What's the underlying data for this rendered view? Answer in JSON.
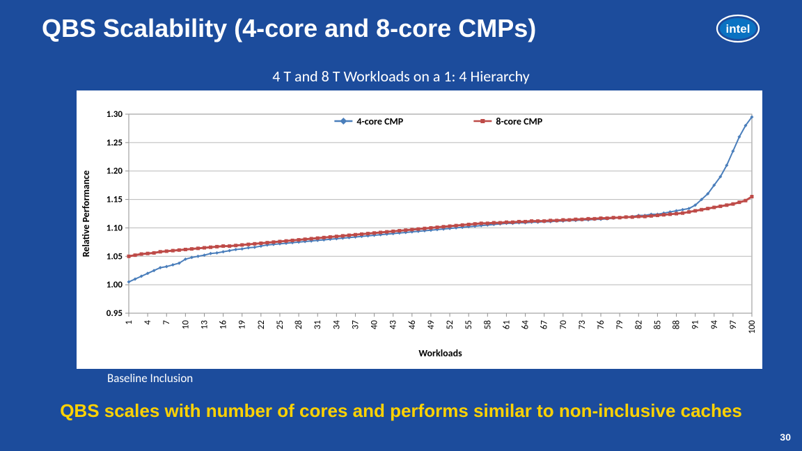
{
  "slide": {
    "background_color": "#1c4c9c",
    "title": "QBS Scalability (4-core and 8-core CMPs)",
    "title_color": "#ffffff",
    "title_fontsize": 36,
    "subtitle": "4 T and 8 T Workloads on a 1: 4 Hierarchy",
    "subtitle_color": "#ffffff",
    "baseline_note": "Baseline Inclusion",
    "conclusion": "QBS scales with number of cores and performs similar to non-inclusive caches",
    "conclusion_color": "#ffd200",
    "page_number": "30"
  },
  "logo": {
    "text": "intel",
    "fill": "#0a72c2",
    "ring": "#ffffff",
    "text_color": "#ffffff"
  },
  "chart": {
    "type": "line",
    "background_color": "#ffffff",
    "plot_border_color": "#8f8f8f",
    "grid_color": "#b8b8b8",
    "ylabel": "Relative Performance",
    "ylabel_fontsize": 14,
    "ylabel_fontweight": "bold",
    "xlabel": "Workloads",
    "xlabel_fontsize": 14,
    "xlabel_fontweight": "bold",
    "ylim": [
      0.95,
      1.3
    ],
    "yticks": [
      0.95,
      1.0,
      1.05,
      1.1,
      1.15,
      1.2,
      1.25,
      1.3
    ],
    "ytick_labels": [
      "0.95",
      "1.00",
      "1.05",
      "1.10",
      "1.15",
      "1.20",
      "1.25",
      "1.30"
    ],
    "xlim": [
      1,
      100
    ],
    "xticks": [
      1,
      4,
      7,
      10,
      13,
      16,
      19,
      22,
      25,
      28,
      31,
      34,
      37,
      40,
      43,
      46,
      49,
      52,
      55,
      58,
      61,
      64,
      67,
      70,
      73,
      76,
      79,
      82,
      85,
      88,
      91,
      94,
      97,
      100
    ],
    "xtick_rotated": true,
    "tick_font": "Calibri, Arial, sans-serif",
    "tick_fontsize": 13,
    "legend": {
      "position": "top",
      "font": "Calibri, Arial, sans-serif",
      "fontsize": 14,
      "fontweight": "bold",
      "items": [
        {
          "label": "4-core CMP",
          "color": "#4a7ebb",
          "marker": "diamond"
        },
        {
          "label": "8-core CMP",
          "color": "#be4b48",
          "marker": "square"
        }
      ]
    },
    "series": [
      {
        "name": "4-core CMP",
        "color": "#4a7ebb",
        "line_width": 2,
        "marker": "diamond",
        "marker_size": 5,
        "x": [
          1,
          2,
          3,
          4,
          5,
          6,
          7,
          8,
          9,
          10,
          11,
          12,
          13,
          14,
          15,
          16,
          17,
          18,
          19,
          20,
          21,
          22,
          23,
          24,
          25,
          26,
          27,
          28,
          29,
          30,
          31,
          32,
          33,
          34,
          35,
          36,
          37,
          38,
          39,
          40,
          41,
          42,
          43,
          44,
          45,
          46,
          47,
          48,
          49,
          50,
          51,
          52,
          53,
          54,
          55,
          56,
          57,
          58,
          59,
          60,
          61,
          62,
          63,
          64,
          65,
          66,
          67,
          68,
          69,
          70,
          71,
          72,
          73,
          74,
          75,
          76,
          77,
          78,
          79,
          80,
          81,
          82,
          83,
          84,
          85,
          86,
          87,
          88,
          89,
          90,
          91,
          92,
          93,
          94,
          95,
          96,
          97,
          98,
          99,
          100
        ],
        "y": [
          1.005,
          1.01,
          1.015,
          1.02,
          1.025,
          1.03,
          1.032,
          1.035,
          1.038,
          1.045,
          1.048,
          1.05,
          1.052,
          1.055,
          1.056,
          1.058,
          1.06,
          1.062,
          1.063,
          1.065,
          1.066,
          1.068,
          1.07,
          1.071,
          1.072,
          1.073,
          1.074,
          1.075,
          1.076,
          1.077,
          1.078,
          1.079,
          1.08,
          1.081,
          1.082,
          1.083,
          1.084,
          1.085,
          1.086,
          1.087,
          1.088,
          1.089,
          1.09,
          1.091,
          1.092,
          1.093,
          1.094,
          1.095,
          1.096,
          1.097,
          1.098,
          1.099,
          1.1,
          1.101,
          1.102,
          1.103,
          1.104,
          1.105,
          1.106,
          1.107,
          1.108,
          1.108,
          1.109,
          1.109,
          1.11,
          1.11,
          1.111,
          1.111,
          1.112,
          1.112,
          1.113,
          1.113,
          1.114,
          1.114,
          1.115,
          1.115,
          1.116,
          1.117,
          1.118,
          1.119,
          1.12,
          1.122,
          1.122,
          1.124,
          1.124,
          1.126,
          1.128,
          1.13,
          1.132,
          1.134,
          1.14,
          1.15,
          1.16,
          1.175,
          1.19,
          1.21,
          1.235,
          1.26,
          1.28,
          1.295
        ]
      },
      {
        "name": "8-core CMP",
        "color": "#be4b48",
        "line_width": 3,
        "marker": "square",
        "marker_size": 5,
        "x": [
          1,
          2,
          3,
          4,
          5,
          6,
          7,
          8,
          9,
          10,
          11,
          12,
          13,
          14,
          15,
          16,
          17,
          18,
          19,
          20,
          21,
          22,
          23,
          24,
          25,
          26,
          27,
          28,
          29,
          30,
          31,
          32,
          33,
          34,
          35,
          36,
          37,
          38,
          39,
          40,
          41,
          42,
          43,
          44,
          45,
          46,
          47,
          48,
          49,
          50,
          51,
          52,
          53,
          54,
          55,
          56,
          57,
          58,
          59,
          60,
          61,
          62,
          63,
          64,
          65,
          66,
          67,
          68,
          69,
          70,
          71,
          72,
          73,
          74,
          75,
          76,
          77,
          78,
          79,
          80,
          81,
          82,
          83,
          84,
          85,
          86,
          87,
          88,
          89,
          90,
          91,
          92,
          93,
          94,
          95,
          96,
          97,
          98,
          99,
          100
        ],
        "y": [
          1.05,
          1.052,
          1.054,
          1.055,
          1.056,
          1.058,
          1.059,
          1.06,
          1.061,
          1.062,
          1.063,
          1.064,
          1.065,
          1.066,
          1.067,
          1.068,
          1.068,
          1.069,
          1.07,
          1.071,
          1.072,
          1.073,
          1.074,
          1.075,
          1.076,
          1.077,
          1.078,
          1.079,
          1.08,
          1.081,
          1.082,
          1.083,
          1.084,
          1.085,
          1.086,
          1.087,
          1.088,
          1.089,
          1.09,
          1.091,
          1.092,
          1.093,
          1.094,
          1.095,
          1.096,
          1.097,
          1.098,
          1.099,
          1.1,
          1.101,
          1.102,
          1.103,
          1.104,
          1.105,
          1.106,
          1.107,
          1.108,
          1.108,
          1.109,
          1.109,
          1.11,
          1.11,
          1.111,
          1.111,
          1.112,
          1.112,
          1.112,
          1.113,
          1.113,
          1.114,
          1.114,
          1.115,
          1.115,
          1.116,
          1.116,
          1.117,
          1.117,
          1.118,
          1.118,
          1.119,
          1.119,
          1.12,
          1.12,
          1.121,
          1.122,
          1.123,
          1.124,
          1.125,
          1.126,
          1.128,
          1.13,
          1.132,
          1.134,
          1.136,
          1.138,
          1.14,
          1.142,
          1.145,
          1.148,
          1.155
        ]
      }
    ]
  }
}
